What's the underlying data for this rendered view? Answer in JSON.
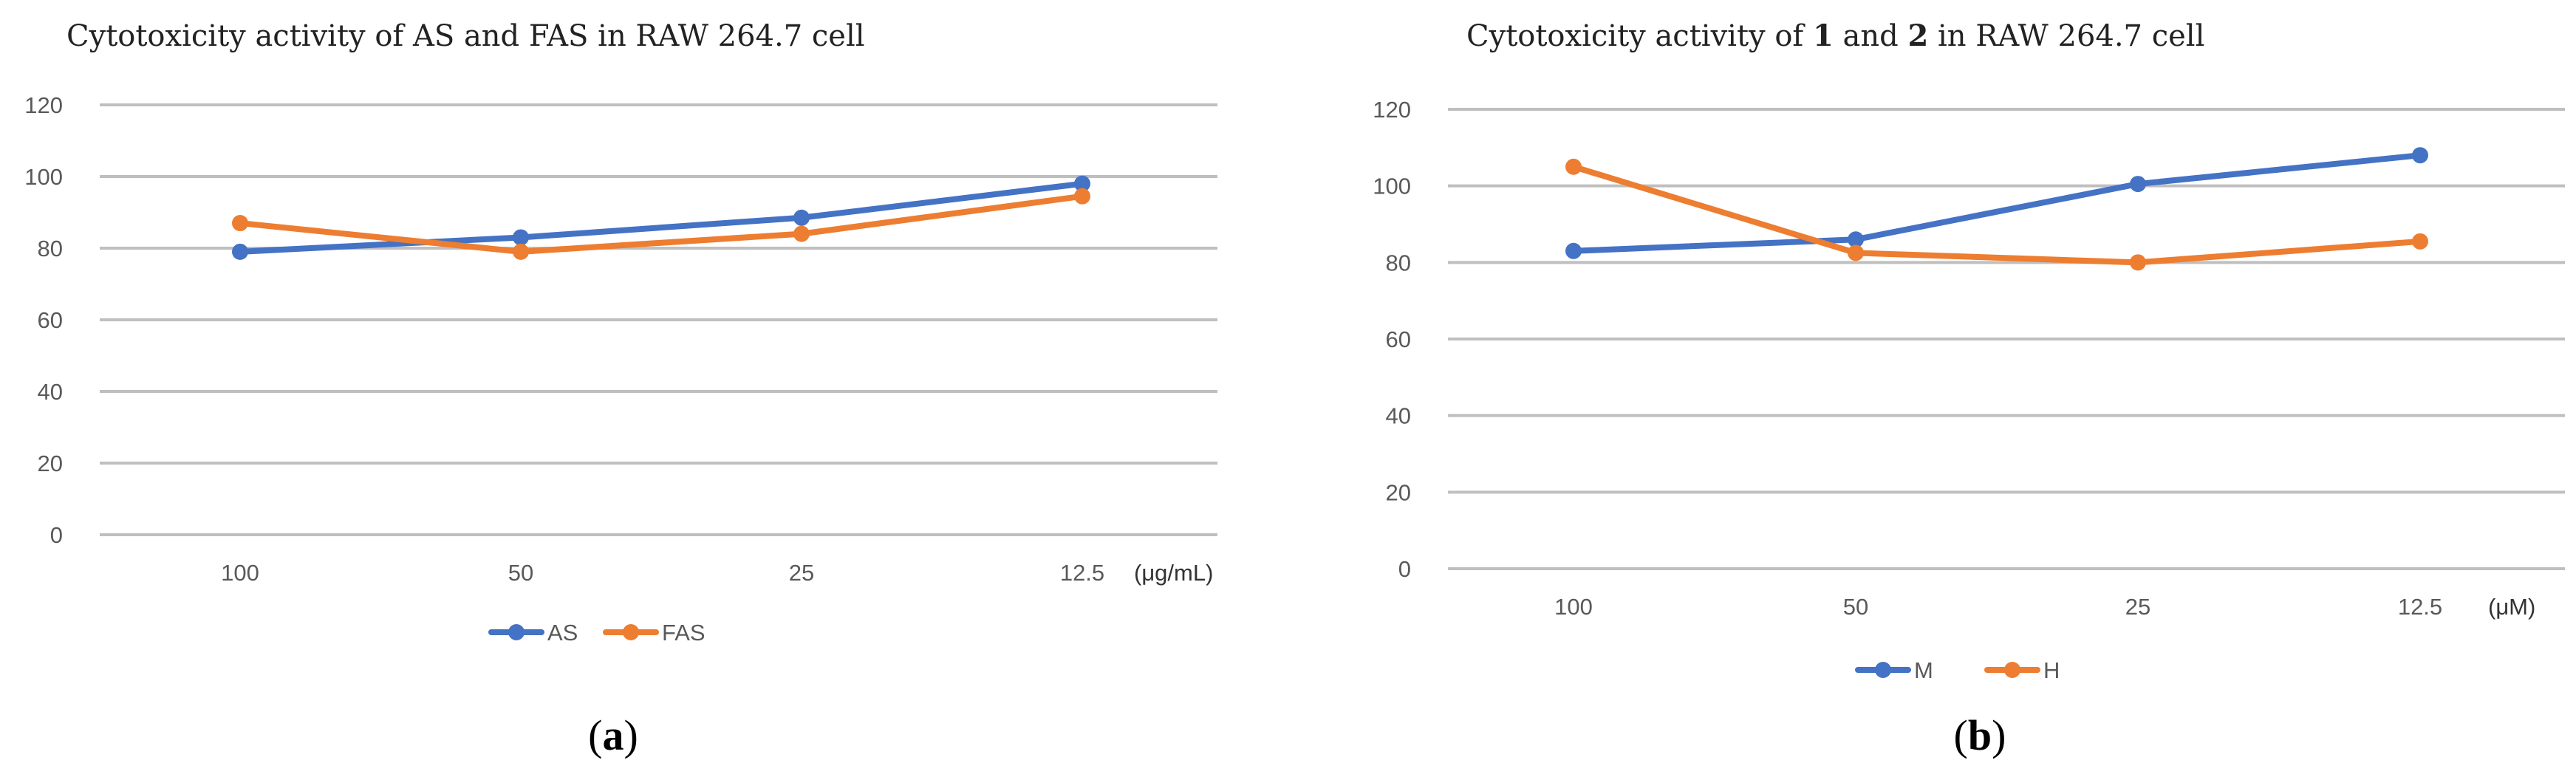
{
  "chart_data": [
    {
      "type": "line",
      "title": "Cytotoxicity  activity  of AS  and  FAS  in  RAW  264.7  cell",
      "categories": [
        "100",
        "50",
        "25",
        "12.5"
      ],
      "x_unit": "(μg/mL)",
      "ylim": [
        0,
        120
      ],
      "yticks": [
        "0",
        "20",
        "40",
        "60",
        "80",
        "100",
        "120"
      ],
      "grid": true,
      "legend_position": "bottom",
      "caption": {
        "open": "(",
        "letter": "a",
        "close": ")"
      },
      "series": [
        {
          "name": "AS",
          "color": "#4472c4",
          "values": [
            79,
            83,
            88.5,
            98
          ]
        },
        {
          "name": "FAS",
          "color": "#ed7d31",
          "values": [
            87,
            79,
            84,
            94.5
          ]
        }
      ]
    },
    {
      "type": "line",
      "title_parts": [
        "Cytotoxicity  activity  of ",
        "1",
        " and ",
        "2",
        " in  RAW  264.7  cell"
      ],
      "categories": [
        "100",
        "50",
        "25",
        "12.5"
      ],
      "x_unit": "(μM)",
      "ylim": [
        0,
        120
      ],
      "yticks": [
        "0",
        "20",
        "40",
        "60",
        "80",
        "100",
        "120"
      ],
      "grid": true,
      "legend_position": "bottom",
      "caption": {
        "open": "(",
        "letter": "b",
        "close": ")"
      },
      "series": [
        {
          "name": "M",
          "color": "#4472c4",
          "values": [
            83,
            86,
            100.5,
            108
          ]
        },
        {
          "name": "H",
          "color": "#ed7d31",
          "values": [
            105,
            82.5,
            80,
            85.5
          ]
        }
      ]
    }
  ]
}
